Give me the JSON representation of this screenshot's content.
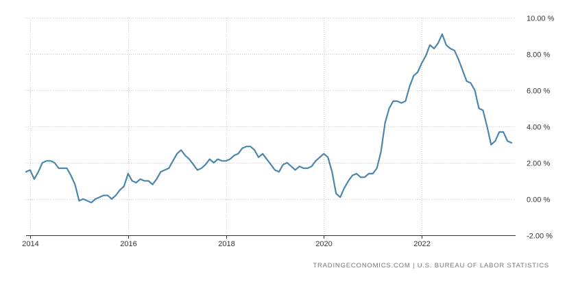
{
  "source": "TRADINGECONOMICS.COM | U.S. BUREAU OF LABOR STATISTICS",
  "colors": {
    "line": "#4a86ad",
    "grid": "#cccccc",
    "axis": "#333333",
    "text": "#333333",
    "source": "#777777"
  },
  "chart_data": {
    "type": "line",
    "title": "",
    "xlabel": "",
    "ylabel": "",
    "xlim": [
      "2013-12",
      "2023-12"
    ],
    "ylim": [
      -2,
      10
    ],
    "x_ticks": [
      {
        "value": "2014-01",
        "label": "2014"
      },
      {
        "value": "2016-01",
        "label": "2016"
      },
      {
        "value": "2018-01",
        "label": "2018"
      },
      {
        "value": "2020-01",
        "label": "2020"
      },
      {
        "value": "2022-01",
        "label": "2022"
      }
    ],
    "y_ticks": [
      {
        "value": 10,
        "label": "10.00 %"
      },
      {
        "value": 8,
        "label": "8.00 %"
      },
      {
        "value": 6,
        "label": "6.00 %"
      },
      {
        "value": 4,
        "label": "4.00 %"
      },
      {
        "value": 2,
        "label": "2.00 %"
      },
      {
        "value": 0,
        "label": "0.00 %"
      },
      {
        "value": -2,
        "label": "-2.00 %"
      }
    ],
    "grid": true,
    "y_axis_side": "right",
    "series": [
      {
        "x": [
          "2013-12",
          "2014-01",
          "2014-02",
          "2014-03",
          "2014-04",
          "2014-05",
          "2014-06",
          "2014-07",
          "2014-08",
          "2014-09",
          "2014-10",
          "2014-11",
          "2014-12",
          "2015-01",
          "2015-02",
          "2015-03",
          "2015-04",
          "2015-05",
          "2015-06",
          "2015-07",
          "2015-08",
          "2015-09",
          "2015-10",
          "2015-11",
          "2015-12",
          "2016-01",
          "2016-02",
          "2016-03",
          "2016-04",
          "2016-05",
          "2016-06",
          "2016-07",
          "2016-08",
          "2016-09",
          "2016-10",
          "2016-11",
          "2016-12",
          "2017-01",
          "2017-02",
          "2017-03",
          "2017-04",
          "2017-05",
          "2017-06",
          "2017-07",
          "2017-08",
          "2017-09",
          "2017-10",
          "2017-11",
          "2017-12",
          "2018-01",
          "2018-02",
          "2018-03",
          "2018-04",
          "2018-05",
          "2018-06",
          "2018-07",
          "2018-08",
          "2018-09",
          "2018-10",
          "2018-11",
          "2018-12",
          "2019-01",
          "2019-02",
          "2019-03",
          "2019-04",
          "2019-05",
          "2019-06",
          "2019-07",
          "2019-08",
          "2019-09",
          "2019-10",
          "2019-11",
          "2019-12",
          "2020-01",
          "2020-02",
          "2020-03",
          "2020-04",
          "2020-05",
          "2020-06",
          "2020-07",
          "2020-08",
          "2020-09",
          "2020-10",
          "2020-11",
          "2020-12",
          "2021-01",
          "2021-02",
          "2021-03",
          "2021-04",
          "2021-05",
          "2021-06",
          "2021-07",
          "2021-08",
          "2021-09",
          "2021-10",
          "2021-11",
          "2021-12",
          "2022-01",
          "2022-02",
          "2022-03",
          "2022-04",
          "2022-05",
          "2022-06",
          "2022-07",
          "2022-08",
          "2022-09",
          "2022-10",
          "2022-11",
          "2022-12",
          "2023-01",
          "2023-02",
          "2023-03",
          "2023-04",
          "2023-05",
          "2023-06",
          "2023-07",
          "2023-08",
          "2023-09",
          "2023-10",
          "2023-11"
        ],
        "values": [
          1.5,
          1.6,
          1.1,
          1.5,
          2.0,
          2.1,
          2.1,
          2.0,
          1.7,
          1.7,
          1.7,
          1.3,
          0.8,
          -0.1,
          0.0,
          -0.1,
          -0.2,
          0.0,
          0.1,
          0.2,
          0.2,
          0.0,
          0.2,
          0.5,
          0.7,
          1.4,
          1.0,
          0.9,
          1.1,
          1.0,
          1.0,
          0.8,
          1.1,
          1.5,
          1.6,
          1.7,
          2.1,
          2.5,
          2.7,
          2.4,
          2.2,
          1.9,
          1.6,
          1.7,
          1.9,
          2.2,
          2.0,
          2.2,
          2.1,
          2.1,
          2.2,
          2.4,
          2.5,
          2.8,
          2.9,
          2.9,
          2.7,
          2.3,
          2.5,
          2.2,
          1.9,
          1.6,
          1.5,
          1.9,
          2.0,
          1.8,
          1.6,
          1.8,
          1.7,
          1.7,
          1.8,
          2.1,
          2.3,
          2.5,
          2.3,
          1.5,
          0.3,
          0.1,
          0.6,
          1.0,
          1.3,
          1.4,
          1.2,
          1.2,
          1.4,
          1.4,
          1.7,
          2.6,
          4.2,
          5.0,
          5.4,
          5.4,
          5.3,
          5.4,
          6.2,
          6.8,
          7.0,
          7.5,
          7.9,
          8.5,
          8.3,
          8.6,
          9.1,
          8.5,
          8.3,
          8.2,
          7.7,
          7.1,
          6.5,
          6.4,
          6.0,
          5.0,
          4.9,
          4.0,
          3.0,
          3.2,
          3.7,
          3.7,
          3.2,
          3.1
        ]
      }
    ]
  }
}
